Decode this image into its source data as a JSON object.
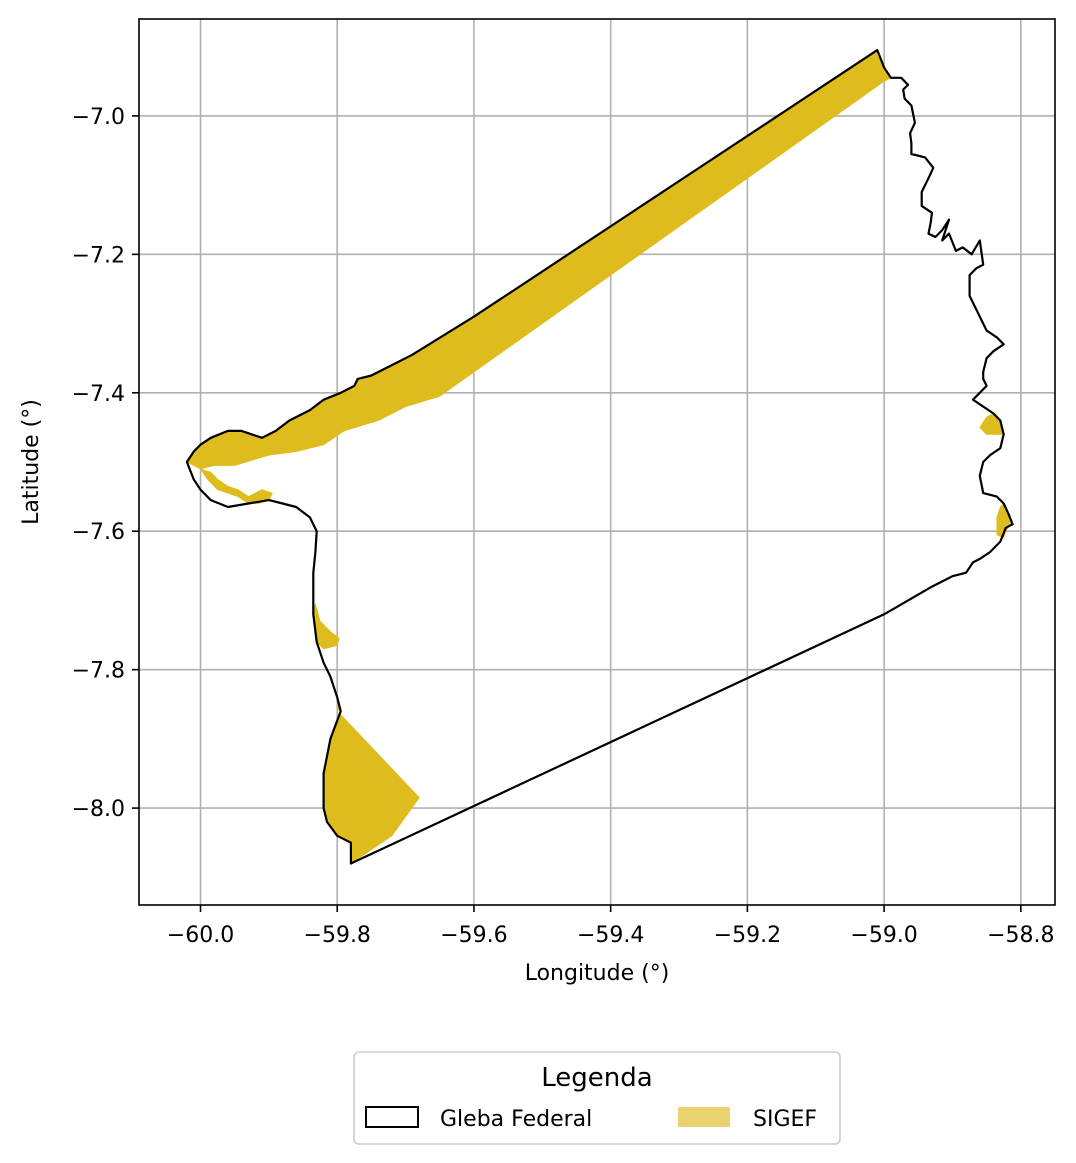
{
  "chart_data": {
    "type": "map",
    "xlabel": "Longitude (°)",
    "ylabel": "Latitude (°)",
    "xlim": [
      -60.09,
      -58.75
    ],
    "ylim": [
      -8.14,
      -6.86
    ],
    "x_ticks": [
      -60.0,
      -59.8,
      -59.6,
      -59.4,
      -59.2,
      -59.0,
      -58.8
    ],
    "x_tick_labels": [
      "−60.0",
      "−59.8",
      "−59.6",
      "−59.4",
      "−59.2",
      "−59.0",
      "−58.8"
    ],
    "y_ticks": [
      -7.0,
      -7.2,
      -7.4,
      -7.6,
      -7.8,
      -8.0
    ],
    "y_tick_labels": [
      "−7.0",
      "−7.2",
      "−7.4",
      "−7.6",
      "−7.8",
      "−8.0"
    ],
    "grid": true,
    "legend": {
      "title": "Legenda",
      "placement": "bottom-center-outside",
      "entries": [
        {
          "label": "Gleba Federal",
          "style": "outline",
          "color": "#000000"
        },
        {
          "label": "SIGEF",
          "style": "fill",
          "color": "#e8d36e"
        }
      ]
    },
    "layers": [
      {
        "name": "Gleba Federal",
        "type": "polygon-outline",
        "color": "#000000",
        "coords": [
          [
            -59.01,
            -6.905
          ],
          [
            -59.0,
            -6.93
          ],
          [
            -58.99,
            -6.945
          ],
          [
            -58.975,
            -6.945
          ],
          [
            -58.965,
            -6.955
          ],
          [
            -58.972,
            -6.962
          ],
          [
            -58.97,
            -6.975
          ],
          [
            -58.96,
            -6.985
          ],
          [
            -58.955,
            -7.01
          ],
          [
            -58.962,
            -7.025
          ],
          [
            -58.96,
            -7.04
          ],
          [
            -58.96,
            -7.055
          ],
          [
            -58.94,
            -7.06
          ],
          [
            -58.928,
            -7.075
          ],
          [
            -58.935,
            -7.09
          ],
          [
            -58.945,
            -7.11
          ],
          [
            -58.945,
            -7.13
          ],
          [
            -58.93,
            -7.14
          ],
          [
            -58.932,
            -7.155
          ],
          [
            -58.935,
            -7.17
          ],
          [
            -58.925,
            -7.175
          ],
          [
            -58.915,
            -7.165
          ],
          [
            -58.905,
            -7.15
          ],
          [
            -58.915,
            -7.18
          ],
          [
            -58.905,
            -7.17
          ],
          [
            -58.895,
            -7.195
          ],
          [
            -58.885,
            -7.19
          ],
          [
            -58.872,
            -7.2
          ],
          [
            -58.86,
            -7.18
          ],
          [
            -58.855,
            -7.215
          ],
          [
            -58.865,
            -7.22
          ],
          [
            -58.875,
            -7.23
          ],
          [
            -58.875,
            -7.26
          ],
          [
            -58.865,
            -7.28
          ],
          [
            -58.855,
            -7.3
          ],
          [
            -58.85,
            -7.31
          ],
          [
            -58.835,
            -7.32
          ],
          [
            -58.825,
            -7.33
          ],
          [
            -58.84,
            -7.34
          ],
          [
            -58.85,
            -7.35
          ],
          [
            -58.855,
            -7.37
          ],
          [
            -58.855,
            -7.38
          ],
          [
            -58.85,
            -7.39
          ],
          [
            -58.87,
            -7.41
          ],
          [
            -58.84,
            -7.43
          ],
          [
            -58.83,
            -7.44
          ],
          [
            -58.825,
            -7.46
          ],
          [
            -58.83,
            -7.48
          ],
          [
            -58.845,
            -7.49
          ],
          [
            -58.855,
            -7.5
          ],
          [
            -58.86,
            -7.52
          ],
          [
            -58.855,
            -7.545
          ],
          [
            -58.835,
            -7.55
          ],
          [
            -58.825,
            -7.56
          ],
          [
            -58.818,
            -7.575
          ],
          [
            -58.812,
            -7.59
          ],
          [
            -58.822,
            -7.595
          ],
          [
            -58.83,
            -7.615
          ],
          [
            -58.845,
            -7.63
          ],
          [
            -58.86,
            -7.64
          ],
          [
            -58.87,
            -7.645
          ],
          [
            -58.88,
            -7.66
          ],
          [
            -58.9,
            -7.665
          ],
          [
            -58.93,
            -7.68
          ],
          [
            -59.0,
            -7.72
          ],
          [
            -59.78,
            -8.08
          ],
          [
            -59.78,
            -8.05
          ],
          [
            -59.8,
            -8.04
          ],
          [
            -59.815,
            -8.02
          ],
          [
            -59.82,
            -8.0
          ],
          [
            -59.82,
            -7.95
          ],
          [
            -59.81,
            -7.9
          ],
          [
            -59.795,
            -7.86
          ],
          [
            -59.8,
            -7.84
          ],
          [
            -59.81,
            -7.81
          ],
          [
            -59.82,
            -7.79
          ],
          [
            -59.83,
            -7.76
          ],
          [
            -59.835,
            -7.72
          ],
          [
            -59.835,
            -7.66
          ],
          [
            -59.832,
            -7.63
          ],
          [
            -59.83,
            -7.6
          ],
          [
            -59.84,
            -7.58
          ],
          [
            -59.86,
            -7.565
          ],
          [
            -59.88,
            -7.56
          ],
          [
            -59.9,
            -7.555
          ],
          [
            -59.93,
            -7.56
          ],
          [
            -59.96,
            -7.565
          ],
          [
            -59.985,
            -7.555
          ],
          [
            -60.0,
            -7.54
          ],
          [
            -60.01,
            -7.525
          ],
          [
            -60.02,
            -7.5
          ],
          [
            -60.01,
            -7.485
          ],
          [
            -60.0,
            -7.475
          ],
          [
            -59.985,
            -7.465
          ],
          [
            -59.96,
            -7.455
          ],
          [
            -59.94,
            -7.455
          ],
          [
            -59.91,
            -7.465
          ],
          [
            -59.89,
            -7.455
          ],
          [
            -59.87,
            -7.44
          ],
          [
            -59.84,
            -7.425
          ],
          [
            -59.82,
            -7.41
          ],
          [
            -59.795,
            -7.4
          ],
          [
            -59.775,
            -7.39
          ],
          [
            -59.77,
            -7.38
          ],
          [
            -59.75,
            -7.375
          ],
          [
            -59.72,
            -7.36
          ],
          [
            -59.69,
            -7.345
          ],
          [
            -59.6,
            -7.29
          ],
          [
            -59.01,
            -6.905
          ]
        ]
      },
      {
        "name": "SIGEF",
        "type": "polygon-fill",
        "color": "#dfbc1e",
        "polygons": [
          [
            [
              -59.01,
              -6.905
            ],
            [
              -59.0,
              -6.93
            ],
            [
              -58.99,
              -6.945
            ],
            [
              -59.0,
              -6.95
            ],
            [
              -59.65,
              -7.405
            ],
            [
              -59.7,
              -7.42
            ],
            [
              -59.74,
              -7.44
            ],
            [
              -59.79,
              -7.455
            ],
            [
              -59.82,
              -7.475
            ],
            [
              -59.86,
              -7.485
            ],
            [
              -59.9,
              -7.49
            ],
            [
              -59.95,
              -7.505
            ],
            [
              -59.98,
              -7.505
            ],
            [
              -60.0,
              -7.51
            ],
            [
              -60.02,
              -7.5
            ],
            [
              -60.01,
              -7.485
            ],
            [
              -60.0,
              -7.475
            ],
            [
              -59.985,
              -7.465
            ],
            [
              -59.96,
              -7.455
            ],
            [
              -59.94,
              -7.455
            ],
            [
              -59.91,
              -7.465
            ],
            [
              -59.89,
              -7.455
            ],
            [
              -59.87,
              -7.44
            ],
            [
              -59.84,
              -7.425
            ],
            [
              -59.82,
              -7.41
            ],
            [
              -59.795,
              -7.4
            ],
            [
              -59.775,
              -7.39
            ],
            [
              -59.77,
              -7.38
            ],
            [
              -59.75,
              -7.375
            ],
            [
              -59.72,
              -7.36
            ],
            [
              -59.69,
              -7.345
            ],
            [
              -59.6,
              -7.29
            ],
            [
              -59.01,
              -6.905
            ]
          ],
          [
            [
              -60.0,
              -7.51
            ],
            [
              -59.99,
              -7.525
            ],
            [
              -59.975,
              -7.54
            ],
            [
              -59.96,
              -7.545
            ],
            [
              -59.945,
              -7.55
            ],
            [
              -59.93,
              -7.56
            ],
            [
              -59.915,
              -7.56
            ],
            [
              -59.9,
              -7.555
            ],
            [
              -59.895,
              -7.545
            ],
            [
              -59.91,
              -7.54
            ],
            [
              -59.93,
              -7.55
            ],
            [
              -59.945,
              -7.54
            ],
            [
              -59.96,
              -7.535
            ],
            [
              -59.975,
              -7.525
            ],
            [
              -59.985,
              -7.515
            ]
          ],
          [
            [
              -59.832,
              -7.705
            ],
            [
              -59.825,
              -7.73
            ],
            [
              -59.81,
              -7.745
            ],
            [
              -59.797,
              -7.755
            ],
            [
              -59.8,
              -7.765
            ],
            [
              -59.82,
              -7.77
            ],
            [
              -59.83,
              -7.76
            ],
            [
              -59.835,
              -7.72
            ]
          ],
          [
            [
              -59.8,
              -7.845
            ],
            [
              -59.795,
              -7.855
            ],
            [
              -59.8,
              -7.86
            ],
            [
              -59.8,
              -7.85
            ]
          ],
          [
            [
              -59.795,
              -7.865
            ],
            [
              -59.68,
              -7.985
            ],
            [
              -59.72,
              -8.04
            ],
            [
              -59.78,
              -8.08
            ],
            [
              -59.78,
              -8.05
            ],
            [
              -59.8,
              -8.04
            ],
            [
              -59.815,
              -8.02
            ],
            [
              -59.82,
              -8.0
            ],
            [
              -59.82,
              -7.95
            ],
            [
              -59.81,
              -7.9
            ]
          ],
          [
            [
              -58.84,
              -7.43
            ],
            [
              -58.83,
              -7.44
            ],
            [
              -58.825,
              -7.46
            ],
            [
              -58.85,
              -7.46
            ],
            [
              -58.86,
              -7.45
            ],
            [
              -58.85,
              -7.435
            ]
          ],
          [
            [
              -58.825,
              -7.56
            ],
            [
              -58.818,
              -7.575
            ],
            [
              -58.815,
              -7.59
            ],
            [
              -58.822,
              -7.6
            ],
            [
              -58.825,
              -7.61
            ],
            [
              -58.835,
              -7.605
            ],
            [
              -58.835,
              -7.58
            ],
            [
              -58.83,
              -7.565
            ]
          ]
        ]
      }
    ]
  }
}
